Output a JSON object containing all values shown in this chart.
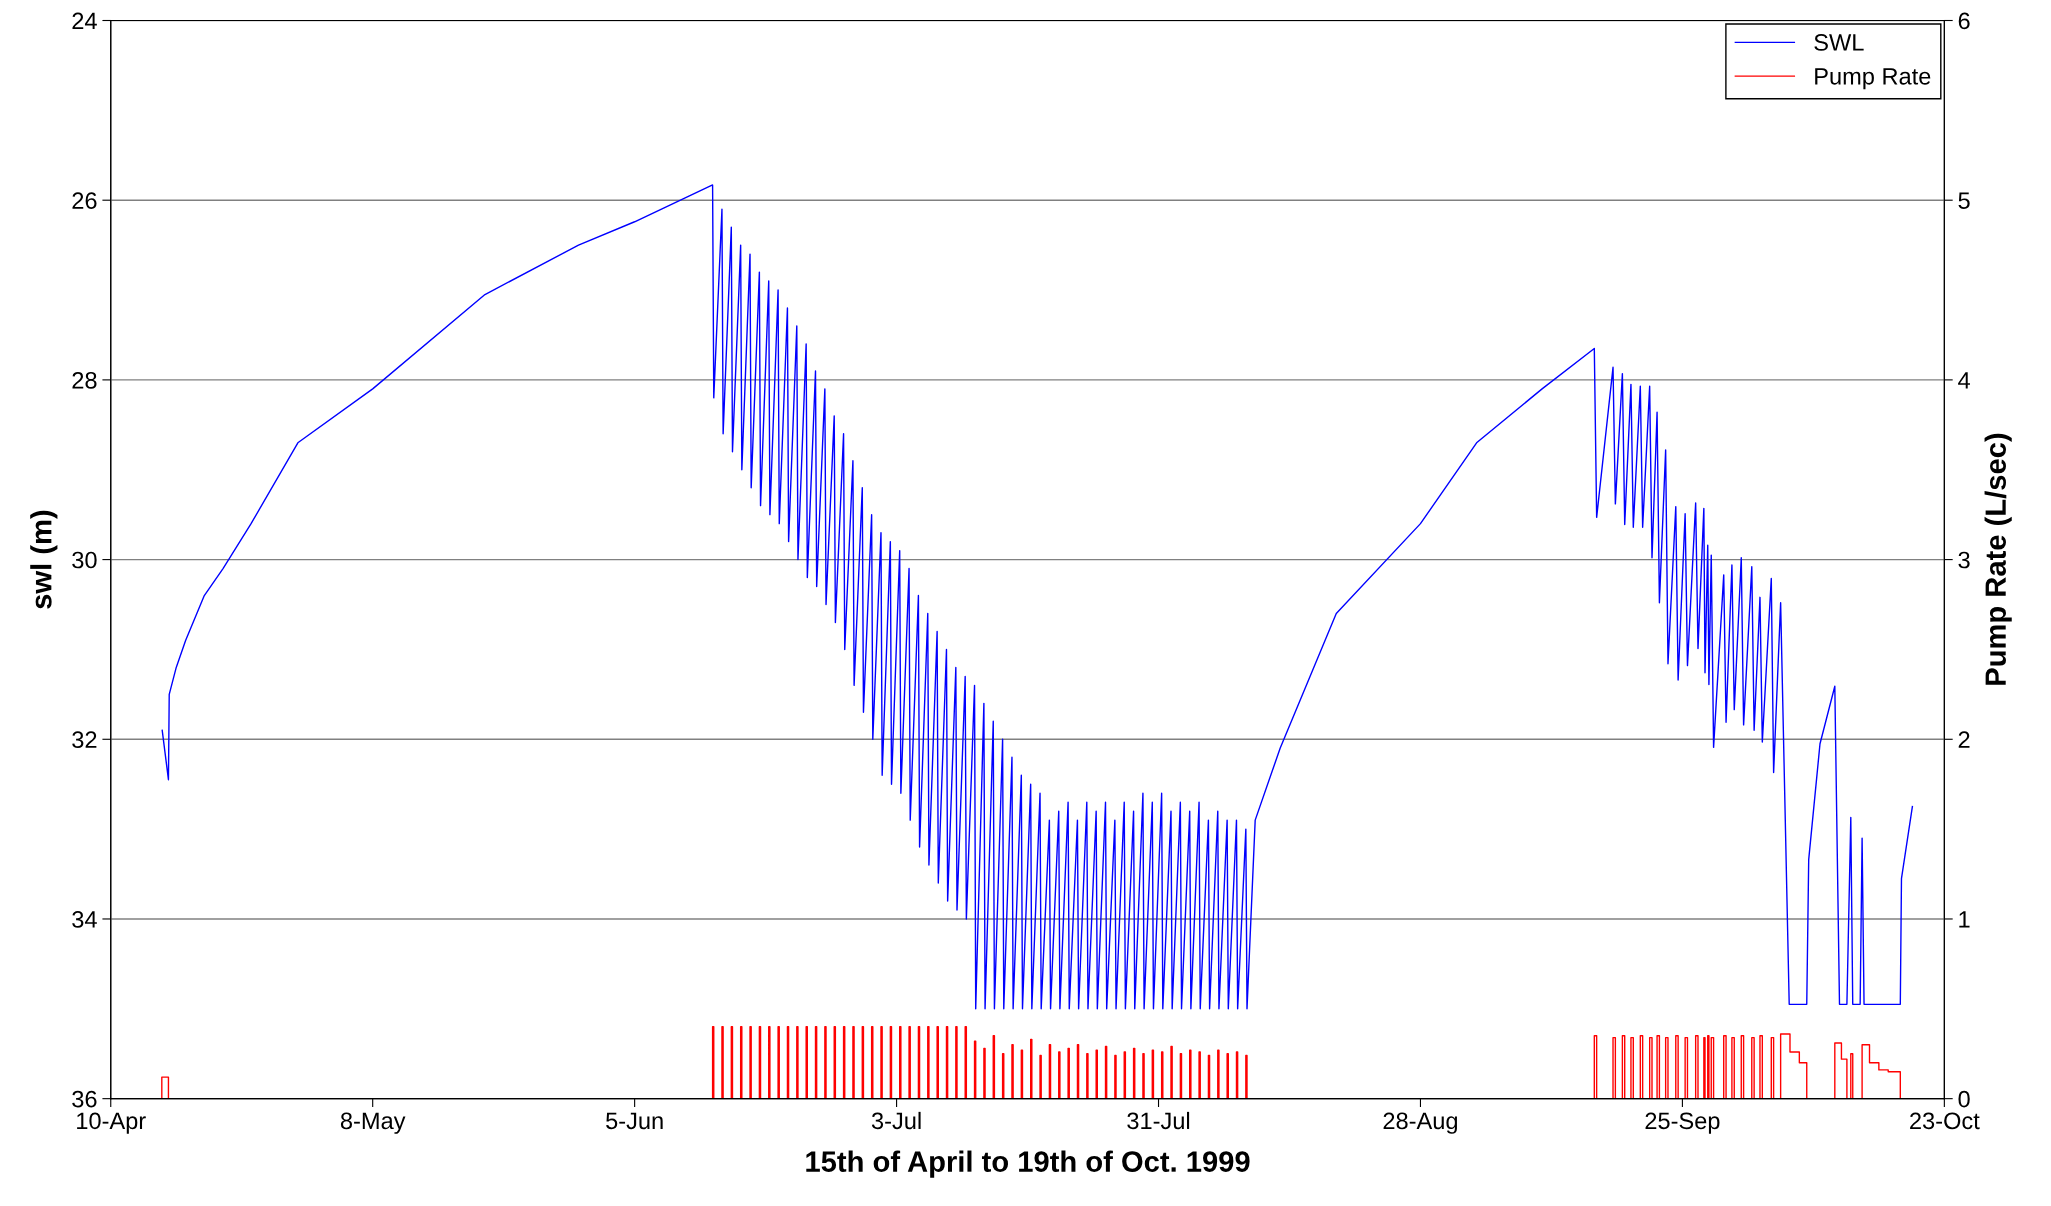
{
  "chart_data": {
    "type": "line",
    "xlabel": "15th of April to 19th of Oct. 1999",
    "ylabel": "swl (m)",
    "y2label": "Pump Rate (L/sec)",
    "xlim": [
      "1999-04-10",
      "1999-10-23"
    ],
    "xticks": [
      {
        "value": "1999-04-10",
        "label": "10-Apr"
      },
      {
        "value": "1999-05-08",
        "label": "8-May"
      },
      {
        "value": "1999-06-05",
        "label": "5-Jun"
      },
      {
        "value": "1999-07-03",
        "label": "3-Jul"
      },
      {
        "value": "1999-07-31",
        "label": "31-Jul"
      },
      {
        "value": "1999-08-28",
        "label": "28-Aug"
      },
      {
        "value": "1999-09-25",
        "label": "25-Sep"
      },
      {
        "value": "1999-10-23",
        "label": "23-Oct"
      }
    ],
    "ylim": [
      36,
      24
    ],
    "yticks": [
      24,
      26,
      28,
      30,
      32,
      34,
      36
    ],
    "y2lim": [
      0,
      6
    ],
    "y2ticks": [
      0,
      1,
      2,
      3,
      4,
      5,
      6
    ],
    "grid": "y",
    "legend": "top right",
    "series": [
      {
        "name": "SWL",
        "color": "#0000ff",
        "x": [
          "1999-04-15T12:00",
          "1999-04-16T04:00",
          "1999-04-16T06:00",
          "1999-04-17",
          "1999-04-18",
          "1999-04-20",
          "1999-04-22",
          "1999-04-25",
          "1999-04-30",
          "1999-05-08",
          "1999-05-20",
          "1999-05-30",
          "1999-06-05",
          "1999-06-13T08:00",
          "1999-06-13T11:00",
          "1999-06-14T08:00",
          "1999-06-14T11:00",
          "1999-06-15T08:00",
          "1999-06-15T11:00",
          "1999-06-16T08:00",
          "1999-06-16T11:00",
          "1999-06-17T08:00",
          "1999-06-17T11:00",
          "1999-06-18T08:00",
          "1999-06-18T11:00",
          "1999-06-19T08:00",
          "1999-06-19T11:00",
          "1999-06-20T08:00",
          "1999-06-20T11:00",
          "1999-06-21T08:00",
          "1999-06-21T11:00",
          "1999-06-22T08:00",
          "1999-06-22T11:00",
          "1999-06-23T08:00",
          "1999-06-23T11:00",
          "1999-06-24T08:00",
          "1999-06-24T11:00",
          "1999-06-25T08:00",
          "1999-06-25T11:00",
          "1999-06-26T08:00",
          "1999-06-26T11:00",
          "1999-06-27T08:00",
          "1999-06-27T11:00",
          "1999-06-28T08:00",
          "1999-06-28T11:00",
          "1999-06-29T08:00",
          "1999-06-29T11:00",
          "1999-06-30T08:00",
          "1999-06-30T11:00",
          "1999-07-01T08:00",
          "1999-07-01T11:00",
          "1999-07-02T08:00",
          "1999-07-02T11:00",
          "1999-07-03T08:00",
          "1999-07-03T11:00",
          "1999-07-04T08:00",
          "1999-07-04T11:00",
          "1999-07-05T08:00",
          "1999-07-05T11:00",
          "1999-07-06T08:00",
          "1999-07-06T11:00",
          "1999-07-07T08:00",
          "1999-07-07T11:00",
          "1999-07-08T08:00",
          "1999-07-08T11:00",
          "1999-07-09T08:00",
          "1999-07-09T11:00",
          "1999-07-10T08:00",
          "1999-07-10T11:00",
          "1999-07-11T08:00",
          "1999-07-11T11:00",
          "1999-07-12T08:00",
          "1999-07-12T11:00",
          "1999-07-13T08:00",
          "1999-07-13T11:00",
          "1999-07-14T08:00",
          "1999-07-14T11:00",
          "1999-07-15T08:00",
          "1999-07-15T11:00",
          "1999-07-16T08:00",
          "1999-07-16T11:00",
          "1999-07-17T08:00",
          "1999-07-17T11:00",
          "1999-07-18T08:00",
          "1999-07-18T11:00",
          "1999-07-19T08:00",
          "1999-07-19T11:00",
          "1999-07-20T08:00",
          "1999-07-20T11:00",
          "1999-07-21T08:00",
          "1999-07-21T11:00",
          "1999-07-22T08:00",
          "1999-07-22T11:00",
          "1999-07-23T08:00",
          "1999-07-23T11:00",
          "1999-07-24T08:00",
          "1999-07-24T11:00",
          "1999-07-25T08:00",
          "1999-07-25T11:00",
          "1999-07-26T08:00",
          "1999-07-26T11:00",
          "1999-07-27T08:00",
          "1999-07-27T11:00",
          "1999-07-28T08:00",
          "1999-07-28T11:00",
          "1999-07-29T08:00",
          "1999-07-29T11:00",
          "1999-07-30T08:00",
          "1999-07-30T11:00",
          "1999-07-31T08:00",
          "1999-07-31T11:00",
          "1999-08-01T08:00",
          "1999-08-01T11:00",
          "1999-08-02T08:00",
          "1999-08-02T11:00",
          "1999-08-03T08:00",
          "1999-08-03T11:00",
          "1999-08-04T08:00",
          "1999-08-04T11:00",
          "1999-08-05T08:00",
          "1999-08-05T11:00",
          "1999-08-06T08:00",
          "1999-08-06T11:00",
          "1999-08-07T08:00",
          "1999-08-07T11:00",
          "1999-08-08T08:00",
          "1999-08-08T11:00",
          "1999-08-09T08:00",
          "1999-08-09T11:00",
          "1999-08-10T08:00",
          "1999-08-13",
          "1999-08-19",
          "1999-08-28",
          "1999-09-03",
          "1999-09-10",
          "1999-09-15T14:00",
          "1999-09-15T20:00",
          "1999-09-17T14:00",
          "1999-09-17T20:00",
          "1999-09-18T14:00",
          "1999-09-18T20:00",
          "1999-09-19T12:00",
          "1999-09-19T18:00",
          "1999-09-20T12:00",
          "1999-09-20T18:00",
          "1999-09-21T12:00",
          "1999-09-21T18:00",
          "1999-09-22T07:00",
          "1999-09-22T13:00",
          "1999-09-23T05:00",
          "1999-09-23T11:00",
          "1999-09-24T07:00",
          "1999-09-24T13:00",
          "1999-09-25T07:00",
          "1999-09-25T13:00",
          "1999-09-26T10:00",
          "1999-09-26T16:00",
          "1999-09-27T07:00",
          "1999-09-27T10:00",
          "1999-09-27T17:00",
          "1999-09-27T20:00",
          "1999-09-28T02:00",
          "1999-09-28T08:00",
          "1999-09-29T10:00",
          "1999-09-29T16:00",
          "1999-09-30T07:00",
          "1999-09-30T13:00",
          "1999-10-01T07:00",
          "1999-10-01T13:00",
          "1999-10-02T10:00",
          "1999-10-02T16:00",
          "1999-10-03T07:00",
          "1999-10-03T13:00",
          "1999-10-04T12:00",
          "1999-10-04T18:00",
          "1999-10-05T12:00",
          "1999-10-06T10:00",
          "1999-10-08T07:00",
          "1999-10-08T12:00",
          "1999-10-09T17:00",
          "1999-10-11T07:00",
          "1999-10-11T19:00",
          "1999-10-12T14:00",
          "1999-10-13T00:00",
          "1999-10-13T05:00",
          "1999-10-14T00:00",
          "1999-10-14T05:00",
          "1999-10-14T10:00",
          "1999-10-18T07:00",
          "1999-10-18T10:00",
          "1999-10-19T14:00"
        ],
        "values": [
          31.9,
          32.45,
          31.5,
          31.2,
          30.9,
          30.4,
          30.1,
          29.6,
          28.7,
          28.1,
          27.05,
          26.5,
          26.24,
          25.83,
          28.2,
          26.1,
          28.6,
          26.3,
          28.8,
          26.5,
          29.0,
          26.6,
          29.2,
          26.8,
          29.4,
          26.9,
          29.5,
          27.0,
          29.6,
          27.2,
          29.8,
          27.4,
          30.0,
          27.6,
          30.2,
          27.9,
          30.3,
          28.1,
          30.5,
          28.4,
          30.7,
          28.6,
          31.0,
          28.9,
          31.4,
          29.2,
          31.7,
          29.5,
          32.0,
          29.7,
          32.4,
          29.8,
          32.5,
          29.9,
          32.6,
          30.1,
          32.9,
          30.4,
          33.2,
          30.6,
          33.4,
          30.8,
          33.6,
          31.0,
          33.8,
          31.2,
          33.9,
          31.3,
          34.0,
          31.4,
          35.0,
          31.6,
          35.0,
          31.8,
          35.0,
          32.0,
          35.0,
          32.2,
          35.0,
          32.4,
          35.0,
          32.5,
          35.0,
          32.6,
          35.0,
          32.9,
          35.0,
          32.8,
          35.0,
          32.7,
          35.0,
          32.9,
          35.0,
          32.7,
          35.0,
          32.8,
          35.0,
          32.7,
          35.0,
          32.9,
          35.0,
          32.7,
          35.0,
          32.8,
          35.0,
          32.6,
          35.0,
          32.7,
          35.0,
          32.6,
          35.0,
          32.8,
          35.0,
          32.7,
          35.0,
          32.8,
          35.0,
          32.7,
          35.0,
          32.9,
          35.0,
          32.8,
          35.0,
          32.9,
          35.0,
          32.9,
          35.0,
          33.0,
          35.0,
          32.9,
          32.1,
          30.6,
          29.6,
          28.7,
          28.1,
          27.65,
          29.53,
          27.86,
          29.38,
          27.93,
          29.61,
          28.05,
          29.64,
          28.07,
          29.64,
          28.07,
          29.98,
          28.36,
          30.48,
          28.78,
          31.16,
          29.41,
          31.34,
          29.49,
          31.18,
          29.37,
          30.99,
          29.43,
          31.26,
          29.84,
          31.39,
          29.95,
          32.09,
          30.17,
          31.81,
          30.06,
          31.67,
          29.98,
          31.84,
          30.08,
          31.9,
          30.42,
          32.03,
          30.21,
          32.37,
          30.48,
          34.95,
          34.95,
          33.34,
          32.05,
          31.41,
          34.95,
          34.95,
          32.87,
          34.95,
          34.95,
          33.1,
          34.95,
          34.95,
          33.55,
          32.75
        ]
      },
      {
        "name": "Pump Rate",
        "color": "#ff0000",
        "type": "step",
        "axis": "y2",
        "x": [
          "1999-04-15T11:00",
          "1999-04-15T11:00",
          "1999-04-16T04:00",
          "1999-06-13T08:00",
          "1999-06-13T11:00",
          "1999-06-14T08:00",
          "1999-06-14T11:00",
          "1999-06-15T08:00",
          "1999-06-15T11:00",
          "1999-06-16T08:00",
          "1999-06-16T11:00",
          "1999-06-17T08:00",
          "1999-06-17T11:00",
          "1999-06-18T08:00",
          "1999-06-18T11:00",
          "1999-06-19T08:00",
          "1999-06-19T11:00",
          "1999-06-20T08:00",
          "1999-06-20T11:00",
          "1999-06-21T08:00",
          "1999-06-21T11:00",
          "1999-06-22T08:00",
          "1999-06-22T11:00",
          "1999-06-23T08:00",
          "1999-06-23T11:00",
          "1999-06-24T08:00",
          "1999-06-24T11:00",
          "1999-06-25T08:00",
          "1999-06-25T11:00",
          "1999-06-26T08:00",
          "1999-06-26T11:00",
          "1999-06-27T08:00",
          "1999-06-27T11:00",
          "1999-06-28T08:00",
          "1999-06-28T11:00",
          "1999-06-29T08:00",
          "1999-06-29T11:00",
          "1999-06-30T08:00",
          "1999-06-30T11:00",
          "1999-07-01T08:00",
          "1999-07-01T11:00",
          "1999-07-02T08:00",
          "1999-07-02T11:00",
          "1999-07-03T08:00",
          "1999-07-03T11:00",
          "1999-07-04T08:00",
          "1999-07-04T11:00",
          "1999-07-05T08:00",
          "1999-07-05T11:00",
          "1999-07-06T08:00",
          "1999-07-06T11:00",
          "1999-07-07T08:00",
          "1999-07-07T11:00",
          "1999-07-08T08:00",
          "1999-07-08T11:00",
          "1999-07-09T08:00",
          "1999-07-09T11:00",
          "1999-07-10T08:00",
          "1999-07-10T11:00",
          "1999-07-11T08:00",
          "1999-07-11T11:00",
          "1999-07-12T08:00",
          "1999-07-12T11:00",
          "1999-07-13T08:00",
          "1999-07-13T11:00",
          "1999-07-14T08:00",
          "1999-07-14T11:00",
          "1999-07-15T08:00",
          "1999-07-15T11:00",
          "1999-07-16T08:00",
          "1999-07-16T11:00",
          "1999-07-17T08:00",
          "1999-07-17T11:00",
          "1999-07-18T08:00",
          "1999-07-18T11:00",
          "1999-07-19T08:00",
          "1999-07-19T11:00",
          "1999-07-20T08:00",
          "1999-07-20T11:00",
          "1999-07-21T08:00",
          "1999-07-21T11:00",
          "1999-07-22T08:00",
          "1999-07-22T11:00",
          "1999-07-23T08:00",
          "1999-07-23T11:00",
          "1999-07-24T08:00",
          "1999-07-24T11:00",
          "1999-07-25T08:00",
          "1999-07-25T11:00",
          "1999-07-26T08:00",
          "1999-07-26T11:00",
          "1999-07-27T08:00",
          "1999-07-27T11:00",
          "1999-07-28T08:00",
          "1999-07-28T11:00",
          "1999-07-29T08:00",
          "1999-07-29T11:00",
          "1999-07-30T08:00",
          "1999-07-30T11:00",
          "1999-07-31T08:00",
          "1999-07-31T11:00",
          "1999-08-01T08:00",
          "1999-08-01T11:00",
          "1999-08-02T08:00",
          "1999-08-02T11:00",
          "1999-08-03T08:00",
          "1999-08-03T11:00",
          "1999-08-04T08:00",
          "1999-08-04T11:00",
          "1999-08-05T08:00",
          "1999-08-05T11:00",
          "1999-08-06T08:00",
          "1999-08-06T11:00",
          "1999-08-07T08:00",
          "1999-08-07T11:00",
          "1999-08-08T08:00",
          "1999-08-08T11:00",
          "1999-08-09T08:00",
          "1999-08-09T11:00",
          "1999-09-15T14:00",
          "1999-09-15T20:00",
          "1999-09-17T14:00",
          "1999-09-17T20:00",
          "1999-09-18T14:00",
          "1999-09-18T20:00",
          "1999-09-19T12:00",
          "1999-09-19T18:00",
          "1999-09-20T12:00",
          "1999-09-20T18:00",
          "1999-09-21T12:00",
          "1999-09-21T18:00",
          "1999-09-22T07:00",
          "1999-09-22T13:00",
          "1999-09-23T05:00",
          "1999-09-23T11:00",
          "1999-09-24T07:00",
          "1999-09-24T13:00",
          "1999-09-25T07:00",
          "1999-09-25T13:00",
          "1999-09-26T10:00",
          "1999-09-26T16:00",
          "1999-09-27T07:00",
          "1999-09-27T10:00",
          "1999-09-27T17:00",
          "1999-09-27T20:00",
          "1999-09-28T02:00",
          "1999-09-28T08:00",
          "1999-09-29T10:00",
          "1999-09-29T16:00",
          "1999-09-30T07:00",
          "1999-09-30T13:00",
          "1999-10-01T07:00",
          "1999-10-01T13:00",
          "1999-10-02T10:00",
          "1999-10-02T16:00",
          "1999-10-03T07:00",
          "1999-10-03T13:00",
          "1999-10-04T12:00",
          "1999-10-04T18:00",
          "1999-10-05T12:00",
          "1999-10-06T12:00",
          "1999-10-07T12:00",
          "1999-10-08T07:00",
          "1999-10-11T07:00",
          "1999-10-12T00:00",
          "1999-10-12T14:00",
          "1999-10-13T00:00",
          "1999-10-13T05:00",
          "1999-10-14T05:00",
          "1999-10-15T00:00",
          "1999-10-16T00:00",
          "1999-10-17T00:00",
          "1999-10-18T07:00"
        ],
        "values": [
          0,
          0.12,
          0,
          0.4,
          0,
          0.4,
          0,
          0.4,
          0,
          0.4,
          0,
          0.4,
          0,
          0.4,
          0,
          0.4,
          0,
          0.4,
          0,
          0.4,
          0,
          0.4,
          0,
          0.4,
          0,
          0.4,
          0,
          0.4,
          0,
          0.4,
          0,
          0.4,
          0,
          0.4,
          0,
          0.4,
          0,
          0.4,
          0,
          0.4,
          0,
          0.4,
          0,
          0.4,
          0,
          0.4,
          0,
          0.4,
          0,
          0.4,
          0,
          0.4,
          0,
          0.4,
          0,
          0.4,
          0,
          0.4,
          0,
          0.32,
          0,
          0.28,
          0,
          0.35,
          0,
          0.25,
          0,
          0.3,
          0,
          0.27,
          0,
          0.33,
          0,
          0.24,
          0,
          0.3,
          0,
          0.26,
          0,
          0.28,
          0,
          0.3,
          0,
          0.25,
          0,
          0.27,
          0,
          0.29,
          0,
          0.24,
          0,
          0.26,
          0,
          0.28,
          0,
          0.25,
          0,
          0.27,
          0,
          0.26,
          0,
          0.29,
          0,
          0.25,
          0,
          0.27,
          0,
          0.26,
          0,
          0.24,
          0,
          0.27,
          0,
          0.25,
          0,
          0.26,
          0,
          0.24,
          0,
          0.35,
          0,
          0.34,
          0,
          0.35,
          0,
          0.34,
          0,
          0.35,
          0,
          0.34,
          0,
          0.35,
          0,
          0.34,
          0,
          0.35,
          0,
          0.34,
          0,
          0.35,
          0,
          0.34,
          0,
          0.35,
          0,
          0.34,
          0,
          0.35,
          0,
          0.34,
          0,
          0.35,
          0,
          0.34,
          0,
          0.35,
          0,
          0.34,
          0,
          0.36,
          0.26,
          0.2,
          0,
          0.31,
          0.22,
          0,
          0.25,
          0,
          0.3,
          0.2,
          0.16,
          0.15,
          0
        ]
      }
    ]
  }
}
